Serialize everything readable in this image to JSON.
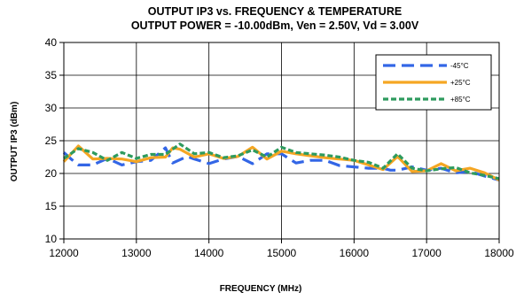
{
  "chart_data": {
    "type": "line",
    "title_line1": "OUTPUT IP3 vs. FREQUENCY & TEMPERATURE",
    "title_line2": "OUTPUT POWER = -10.00dBm, Ven = 2.50V, Vd = 3.00V",
    "xlabel": "FREQUENCY (MHz)",
    "ylabel": "OUTPUT IP3 (dBm)",
    "xlim": [
      12000,
      18000
    ],
    "ylim": [
      10,
      40
    ],
    "xticks": [
      12000,
      13000,
      14000,
      15000,
      16000,
      17000,
      18000
    ],
    "yticks": [
      10,
      15,
      20,
      25,
      30,
      35,
      40
    ],
    "grid": true,
    "legend_position": "top-right",
    "series": [
      {
        "name": "-45°C",
        "color": "#3366e6",
        "dash": "dashed",
        "x": [
          12000,
          12100,
          12200,
          12400,
          12600,
          12800,
          13000,
          13200,
          13400,
          13500,
          13700,
          13800,
          14000,
          14200,
          14400,
          14600,
          14800,
          15000,
          15200,
          15400,
          15600,
          15800,
          16000,
          16200,
          16400,
          16500,
          16600,
          16800,
          17000,
          17200,
          17400,
          17600,
          17800,
          18000
        ],
        "y": [
          23.2,
          22.2,
          21.3,
          21.3,
          22.3,
          21.3,
          21.8,
          22.0,
          23.9,
          21.6,
          22.6,
          22.2,
          21.5,
          22.2,
          22.6,
          21.5,
          23.0,
          23.0,
          21.6,
          22.0,
          22.0,
          21.2,
          21.0,
          20.8,
          20.8,
          20.5,
          20.5,
          21.0,
          20.5,
          20.8,
          20.1,
          20.3,
          19.6,
          19.0
        ]
      },
      {
        "name": "+25°C",
        "color": "#f5a623",
        "dash": "solid",
        "x": [
          12000,
          12200,
          12400,
          12600,
          12800,
          13000,
          13200,
          13400,
          13500,
          13600,
          13800,
          14000,
          14200,
          14400,
          14600,
          14800,
          15000,
          15200,
          15400,
          15600,
          15800,
          16000,
          16200,
          16400,
          16600,
          16800,
          17000,
          17200,
          17400,
          17600,
          17800,
          18000
        ],
        "y": [
          21.8,
          24.2,
          22.2,
          22.3,
          22.2,
          21.8,
          22.4,
          22.5,
          23.9,
          23.7,
          22.5,
          23.0,
          22.3,
          22.6,
          24.0,
          22.2,
          23.4,
          23.0,
          22.7,
          22.4,
          22.2,
          22.0,
          21.3,
          20.6,
          22.6,
          20.3,
          20.4,
          21.5,
          20.4,
          20.8,
          20.1,
          19.0
        ]
      },
      {
        "name": "+85°C",
        "color": "#2e9b5e",
        "dash": "dotted",
        "x": [
          12000,
          12200,
          12400,
          12600,
          12800,
          13000,
          13200,
          13400,
          13600,
          13800,
          14000,
          14200,
          14400,
          14600,
          14800,
          15000,
          15200,
          15400,
          15600,
          15800,
          16000,
          16200,
          16400,
          16600,
          16800,
          17000,
          17200,
          17400,
          17600,
          17800,
          18000
        ],
        "y": [
          22.3,
          23.8,
          23.2,
          22.0,
          23.2,
          22.3,
          22.9,
          22.9,
          24.5,
          23.0,
          23.2,
          22.4,
          22.7,
          23.6,
          22.5,
          24.0,
          23.2,
          23.0,
          22.8,
          22.5,
          22.0,
          21.7,
          20.8,
          23.0,
          20.8,
          20.4,
          20.7,
          20.9,
          20.1,
          19.7,
          19.2
        ]
      }
    ]
  }
}
